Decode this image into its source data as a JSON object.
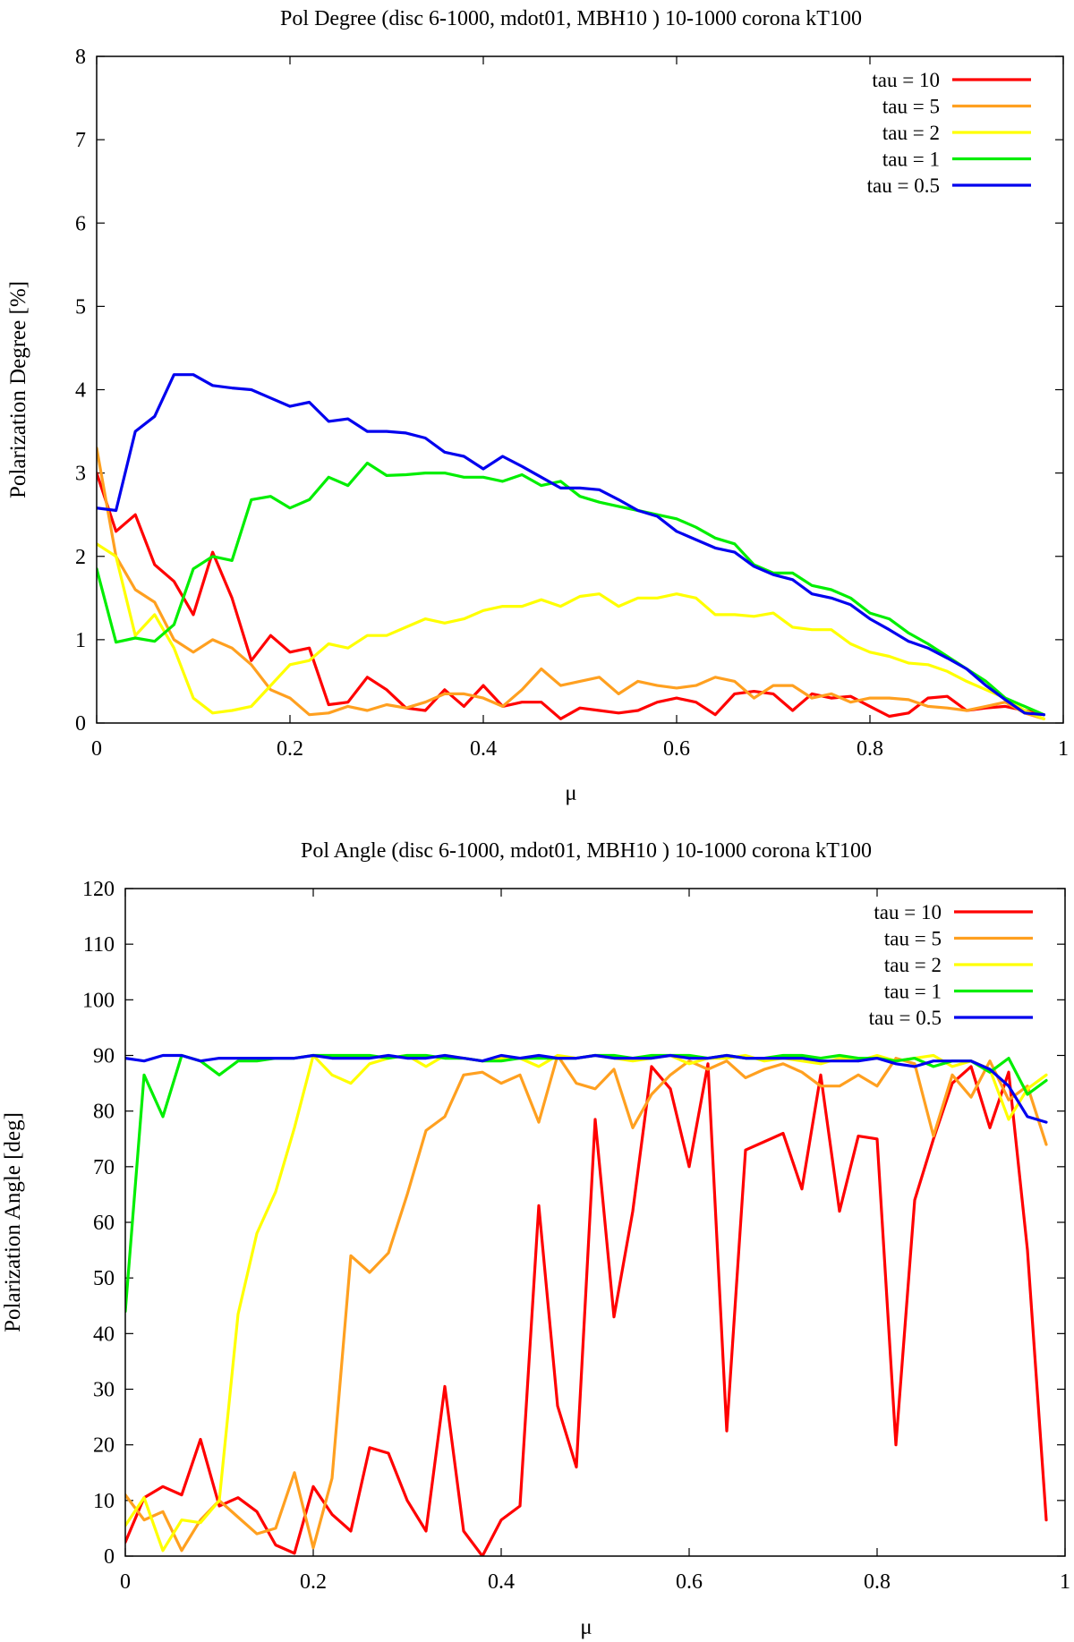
{
  "chart_data": [
    {
      "type": "line",
      "title": "Pol Degree (disc 6-1000, mdot01, MBH10 ) 10-1000 corona kT100",
      "xlabel": "μ",
      "ylabel": "Polarization Degree [%]",
      "xlim": [
        0,
        1
      ],
      "ylim": [
        0,
        8
      ],
      "xticks": [
        "0",
        "0.2",
        "0.4",
        "0.6",
        "0.8",
        "1"
      ],
      "yticks": [
        "0",
        "1",
        "2",
        "3",
        "4",
        "5",
        "6",
        "7",
        "8"
      ],
      "legend_position": "top-right",
      "grid": false,
      "x": [
        0,
        0.02,
        0.04,
        0.06,
        0.08,
        0.1,
        0.12,
        0.14,
        0.16,
        0.18,
        0.2,
        0.22,
        0.24,
        0.26,
        0.28,
        0.3,
        0.32,
        0.34,
        0.36,
        0.38,
        0.4,
        0.42,
        0.44,
        0.46,
        0.48,
        0.5,
        0.52,
        0.54,
        0.56,
        0.58,
        0.6,
        0.62,
        0.64,
        0.66,
        0.68,
        0.7,
        0.72,
        0.74,
        0.76,
        0.78,
        0.8,
        0.82,
        0.84,
        0.86,
        0.88,
        0.9,
        0.92,
        0.94,
        0.96,
        0.98
      ],
      "series": [
        {
          "name": "tau = 10",
          "color": "#ff0000",
          "values": [
            3.0,
            2.3,
            2.5,
            1.9,
            1.7,
            1.3,
            2.05,
            1.5,
            0.75,
            1.05,
            0.85,
            0.9,
            0.22,
            0.25,
            0.55,
            0.4,
            0.18,
            0.15,
            0.4,
            0.2,
            0.45,
            0.2,
            0.25,
            0.25,
            0.05,
            0.18,
            0.15,
            0.12,
            0.15,
            0.25,
            0.3,
            0.25,
            0.1,
            0.35,
            0.38,
            0.35,
            0.15,
            0.35,
            0.3,
            0.32,
            0.2,
            0.08,
            0.12,
            0.3,
            0.32,
            0.15,
            0.18,
            0.2,
            0.15,
            0.1
          ]
        },
        {
          "name": "tau = 5",
          "color": "#ffa020",
          "values": [
            3.3,
            2.0,
            1.6,
            1.45,
            1.0,
            0.85,
            1.0,
            0.9,
            0.7,
            0.4,
            0.3,
            0.1,
            0.12,
            0.2,
            0.15,
            0.22,
            0.18,
            0.25,
            0.35,
            0.35,
            0.3,
            0.2,
            0.4,
            0.65,
            0.45,
            0.5,
            0.55,
            0.35,
            0.5,
            0.45,
            0.42,
            0.45,
            0.55,
            0.5,
            0.3,
            0.45,
            0.45,
            0.3,
            0.35,
            0.25,
            0.3,
            0.3,
            0.28,
            0.2,
            0.18,
            0.15,
            0.2,
            0.25,
            0.12,
            0.05
          ]
        },
        {
          "name": "tau = 2",
          "color": "#ffff00",
          "values": [
            2.15,
            2.0,
            1.05,
            1.3,
            0.9,
            0.3,
            0.12,
            0.15,
            0.2,
            0.45,
            0.7,
            0.75,
            0.95,
            0.9,
            1.05,
            1.05,
            1.15,
            1.25,
            1.2,
            1.25,
            1.35,
            1.4,
            1.4,
            1.48,
            1.4,
            1.52,
            1.55,
            1.4,
            1.5,
            1.5,
            1.55,
            1.5,
            1.3,
            1.3,
            1.28,
            1.32,
            1.15,
            1.12,
            1.12,
            0.95,
            0.85,
            0.8,
            0.72,
            0.7,
            0.62,
            0.5,
            0.4,
            0.3,
            0.15,
            0.05
          ]
        },
        {
          "name": "tau = 1",
          "color": "#00ee00",
          "values": [
            1.85,
            0.97,
            1.02,
            0.98,
            1.18,
            1.85,
            2.0,
            1.95,
            2.68,
            2.72,
            2.58,
            2.68,
            2.95,
            2.85,
            3.12,
            2.97,
            2.98,
            3.0,
            3.0,
            2.95,
            2.95,
            2.9,
            2.98,
            2.85,
            2.9,
            2.72,
            2.65,
            2.6,
            2.55,
            2.5,
            2.45,
            2.35,
            2.22,
            2.15,
            1.9,
            1.8,
            1.8,
            1.65,
            1.6,
            1.5,
            1.32,
            1.25,
            1.08,
            0.95,
            0.8,
            0.65,
            0.5,
            0.3,
            0.2,
            0.1
          ]
        },
        {
          "name": "tau = 0.5",
          "color": "#0000ee",
          "values": [
            2.58,
            2.55,
            3.5,
            3.68,
            4.18,
            4.18,
            4.05,
            4.02,
            4.0,
            3.9,
            3.8,
            3.85,
            3.62,
            3.65,
            3.5,
            3.5,
            3.48,
            3.42,
            3.25,
            3.2,
            3.05,
            3.2,
            3.08,
            2.95,
            2.82,
            2.82,
            2.8,
            2.68,
            2.55,
            2.48,
            2.3,
            2.2,
            2.1,
            2.05,
            1.88,
            1.78,
            1.72,
            1.55,
            1.5,
            1.42,
            1.25,
            1.12,
            0.98,
            0.9,
            0.78,
            0.65,
            0.45,
            0.28,
            0.12,
            0.1
          ]
        }
      ]
    },
    {
      "type": "line",
      "title": "Pol Angle (disc 6-1000, mdot01, MBH10 ) 10-1000 corona kT100",
      "xlabel": "μ",
      "ylabel": "Polarization Angle [deg]",
      "xlim": [
        0,
        1
      ],
      "ylim": [
        0,
        120
      ],
      "xticks": [
        "0",
        "0.2",
        "0.4",
        "0.6",
        "0.8",
        "1"
      ],
      "yticks": [
        "0",
        "10",
        "20",
        "30",
        "40",
        "50",
        "60",
        "70",
        "80",
        "90",
        "100",
        "110",
        "120"
      ],
      "legend_position": "top-right",
      "grid": false,
      "x": [
        0,
        0.02,
        0.04,
        0.06,
        0.08,
        0.1,
        0.12,
        0.14,
        0.16,
        0.18,
        0.2,
        0.22,
        0.24,
        0.26,
        0.28,
        0.3,
        0.32,
        0.34,
        0.36,
        0.38,
        0.4,
        0.42,
        0.44,
        0.46,
        0.48,
        0.5,
        0.52,
        0.54,
        0.56,
        0.58,
        0.6,
        0.62,
        0.64,
        0.66,
        0.68,
        0.7,
        0.72,
        0.74,
        0.76,
        0.78,
        0.8,
        0.82,
        0.84,
        0.86,
        0.88,
        0.9,
        0.92,
        0.94,
        0.96,
        0.98
      ],
      "series": [
        {
          "name": "tau = 10",
          "color": "#ff0000",
          "values": [
            2.5,
            10.5,
            12.5,
            11.0,
            21.0,
            9.0,
            10.5,
            8.0,
            2.0,
            0.5,
            12.5,
            7.5,
            4.5,
            19.5,
            18.5,
            10.0,
            4.5,
            30.5,
            4.5,
            0.0,
            6.5,
            9.0,
            63.0,
            27.0,
            16.0,
            78.5,
            43.0,
            62.0,
            88.0,
            84.0,
            70.0,
            88.5,
            22.5,
            73.0,
            74.5,
            76.0,
            66.0,
            86.5,
            62.0,
            75.5,
            75.0,
            20.0,
            64.0,
            75.0,
            85.0,
            88.0,
            77.0,
            87.0,
            55.0,
            6.5
          ]
        },
        {
          "name": "tau = 5",
          "color": "#ffa020",
          "values": [
            11.0,
            6.5,
            8.0,
            1.0,
            6.5,
            10.0,
            7.0,
            4.0,
            5.0,
            15.0,
            1.5,
            14.0,
            54.0,
            51.0,
            54.5,
            65.0,
            76.5,
            79.0,
            86.5,
            87.0,
            85.0,
            86.5,
            78.0,
            90.0,
            85.0,
            84.0,
            87.5,
            77.0,
            83.0,
            86.5,
            89.0,
            87.5,
            89.0,
            86.0,
            87.5,
            88.5,
            87.0,
            84.5,
            84.5,
            86.5,
            84.5,
            89.5,
            88.5,
            75.5,
            86.5,
            82.5,
            89.0,
            82.0,
            84.5,
            74.0
          ]
        },
        {
          "name": "tau = 2",
          "color": "#ffff00",
          "values": [
            5.5,
            10.5,
            1.0,
            6.5,
            6.0,
            10.0,
            43.5,
            58.0,
            65.5,
            77.0,
            90.0,
            86.5,
            85.0,
            88.5,
            89.5,
            90.0,
            88.0,
            90.0,
            89.5,
            89.0,
            89.5,
            89.5,
            88.0,
            90.0,
            89.5,
            90.0,
            89.5,
            89.0,
            89.5,
            90.0,
            88.5,
            89.5,
            89.5,
            90.0,
            89.0,
            89.5,
            89.0,
            88.5,
            89.5,
            89.0,
            90.0,
            89.0,
            89.5,
            90.0,
            88.0,
            89.0,
            87.5,
            78.5,
            84.0,
            86.5
          ]
        },
        {
          "name": "tau = 1",
          "color": "#00ee00",
          "values": [
            44.0,
            86.5,
            79.0,
            90.0,
            89.0,
            86.5,
            89.0,
            89.0,
            89.5,
            89.5,
            90.0,
            90.0,
            90.0,
            90.0,
            89.5,
            90.0,
            90.0,
            89.5,
            89.5,
            89.0,
            89.0,
            89.5,
            89.5,
            89.5,
            89.5,
            90.0,
            90.0,
            89.5,
            90.0,
            90.0,
            90.0,
            89.5,
            90.0,
            89.5,
            89.5,
            90.0,
            90.0,
            89.5,
            90.0,
            89.5,
            89.5,
            89.0,
            89.5,
            88.0,
            89.0,
            89.0,
            87.0,
            89.5,
            83.0,
            85.5
          ]
        },
        {
          "name": "tau = 0.5",
          "color": "#0000ee",
          "values": [
            89.5,
            89.0,
            90.0,
            90.0,
            89.0,
            89.5,
            89.5,
            89.5,
            89.5,
            89.5,
            90.0,
            89.5,
            89.5,
            89.5,
            90.0,
            89.5,
            89.5,
            90.0,
            89.5,
            89.0,
            90.0,
            89.5,
            90.0,
            89.5,
            89.5,
            90.0,
            89.5,
            89.5,
            89.5,
            90.0,
            89.5,
            89.5,
            90.0,
            89.5,
            89.5,
            89.5,
            89.5,
            89.0,
            89.0,
            89.0,
            89.5,
            88.5,
            88.0,
            89.0,
            89.0,
            89.0,
            87.5,
            84.5,
            79.0,
            78.0
          ]
        }
      ]
    }
  ]
}
